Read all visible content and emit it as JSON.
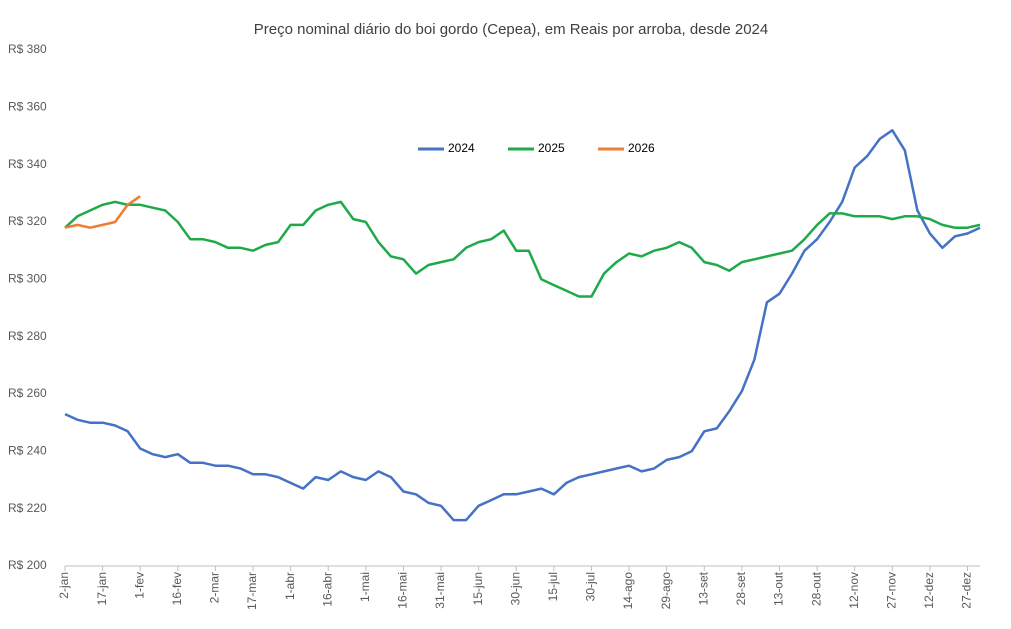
{
  "chart_data": {
    "type": "line",
    "title": "Preço nominal diário do boi gordo (Cepea), em Reais por arroba, desde 2024",
    "categories": [
      "2-jan",
      null,
      null,
      "17-jan",
      null,
      null,
      "1-fev",
      null,
      null,
      "16-fev",
      null,
      null,
      "2-mar",
      null,
      null,
      "17-mar",
      null,
      null,
      "1-abr",
      null,
      null,
      "16-abr",
      null,
      null,
      "1-mai",
      null,
      null,
      "16-mai",
      null,
      null,
      "31-mai",
      null,
      null,
      "15-jun",
      null,
      null,
      "30-jun",
      null,
      null,
      "15-jul",
      null,
      null,
      "30-jul",
      null,
      null,
      "14-ago",
      null,
      null,
      "29-ago",
      null,
      null,
      "13-set",
      null,
      null,
      "28-set",
      null,
      null,
      "13-out",
      null,
      null,
      "28-out",
      null,
      null,
      "12-nov",
      null,
      null,
      "27-nov",
      null,
      null,
      "12-dez",
      null,
      null,
      "27-dez",
      null
    ],
    "series": [
      {
        "name": "2024",
        "color": "#4472c4",
        "values": [
          253,
          251,
          250,
          250,
          249,
          247,
          241,
          239,
          238,
          239,
          236,
          236,
          235,
          235,
          234,
          232,
          232,
          231,
          229,
          227,
          231,
          230,
          233,
          231,
          230,
          233,
          231,
          226,
          225,
          222,
          221,
          216,
          216,
          221,
          223,
          225,
          225,
          226,
          227,
          225,
          229,
          231,
          232,
          233,
          234,
          235,
          233,
          234,
          237,
          238,
          240,
          247,
          248,
          254,
          261,
          272,
          292,
          295,
          302,
          310,
          314,
          320,
          327,
          339,
          343,
          349,
          352,
          345,
          324,
          316,
          311,
          315,
          316,
          318
        ]
      },
      {
        "name": "2025",
        "color": "#1faa4a",
        "values": [
          318,
          322,
          324,
          326,
          327,
          326,
          326,
          325,
          324,
          320,
          314,
          314,
          313,
          311,
          311,
          310,
          312,
          313,
          319,
          319,
          324,
          326,
          327,
          321,
          320,
          313,
          308,
          307,
          302,
          305,
          306,
          307,
          311,
          313,
          314,
          317,
          310,
          310,
          300,
          298,
          296,
          294,
          294,
          302,
          306,
          309,
          308,
          310,
          311,
          313,
          311,
          306,
          305,
          303,
          306,
          307,
          308,
          309,
          310,
          314,
          319,
          323,
          323,
          322,
          322,
          322,
          321,
          322,
          322,
          321,
          319,
          318,
          318,
          319
        ]
      },
      {
        "name": "2026",
        "color": "#ed7d31",
        "values": [
          318,
          319,
          318,
          319,
          320,
          326,
          329,
          null,
          null,
          null,
          null,
          null,
          null,
          null,
          null,
          null,
          null,
          null,
          null,
          null,
          null,
          null,
          null,
          null,
          null,
          null,
          null,
          null,
          null,
          null,
          null,
          null,
          null,
          null,
          null,
          null,
          null,
          null,
          null,
          null,
          null,
          null,
          null,
          null,
          null,
          null,
          null,
          null,
          null,
          null,
          null,
          null,
          null,
          null,
          null,
          null,
          null,
          null,
          null,
          null,
          null,
          null,
          null,
          null,
          null,
          null,
          null,
          null,
          null,
          null,
          null,
          null,
          null,
          null
        ]
      }
    ],
    "ylim": [
      200,
      380
    ],
    "yticks": [
      {
        "value": 200,
        "label": "R$ 200"
      },
      {
        "value": 220,
        "label": "R$ 220"
      },
      {
        "value": 240,
        "label": "R$ 240"
      },
      {
        "value": 260,
        "label": "R$ 260"
      },
      {
        "value": 280,
        "label": "R$ 280"
      },
      {
        "value": 300,
        "label": "R$ 300"
      },
      {
        "value": 320,
        "label": "R$ 320"
      },
      {
        "value": 340,
        "label": "R$ 340"
      },
      {
        "value": 360,
        "label": "R$ 360"
      },
      {
        "value": 380,
        "label": "R$ 380"
      }
    ],
    "grid": false,
    "legend": "top"
  }
}
